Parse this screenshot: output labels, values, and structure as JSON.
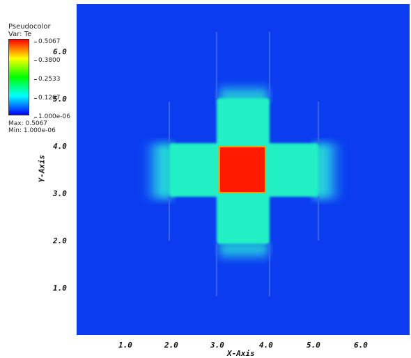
{
  "legend": {
    "title_line1": "Pseudocolor",
    "title_line2": "Var: Te",
    "ticks": [
      "0.5067",
      "0.3800",
      "0.2533",
      "0.1267",
      "1.000e-06"
    ],
    "max_label": "Max:  0.5067",
    "min_label": "Min:  1.000e-06"
  },
  "axes": {
    "x_label": "X-Axis",
    "y_label": "Y-Axis",
    "x_ticks": [
      "1.0",
      "2.0",
      "3.0",
      "4.0",
      "5.0",
      "6.0"
    ],
    "y_ticks": [
      "6.0",
      "5.0",
      "4.0",
      "3.0",
      "2.0",
      "1.0"
    ]
  },
  "colors": {
    "background_field": "#0b3cf0",
    "cross_field": "#22f0c4",
    "hot_core": "#ff1a00",
    "core_edge": "#ff9a00"
  }
}
